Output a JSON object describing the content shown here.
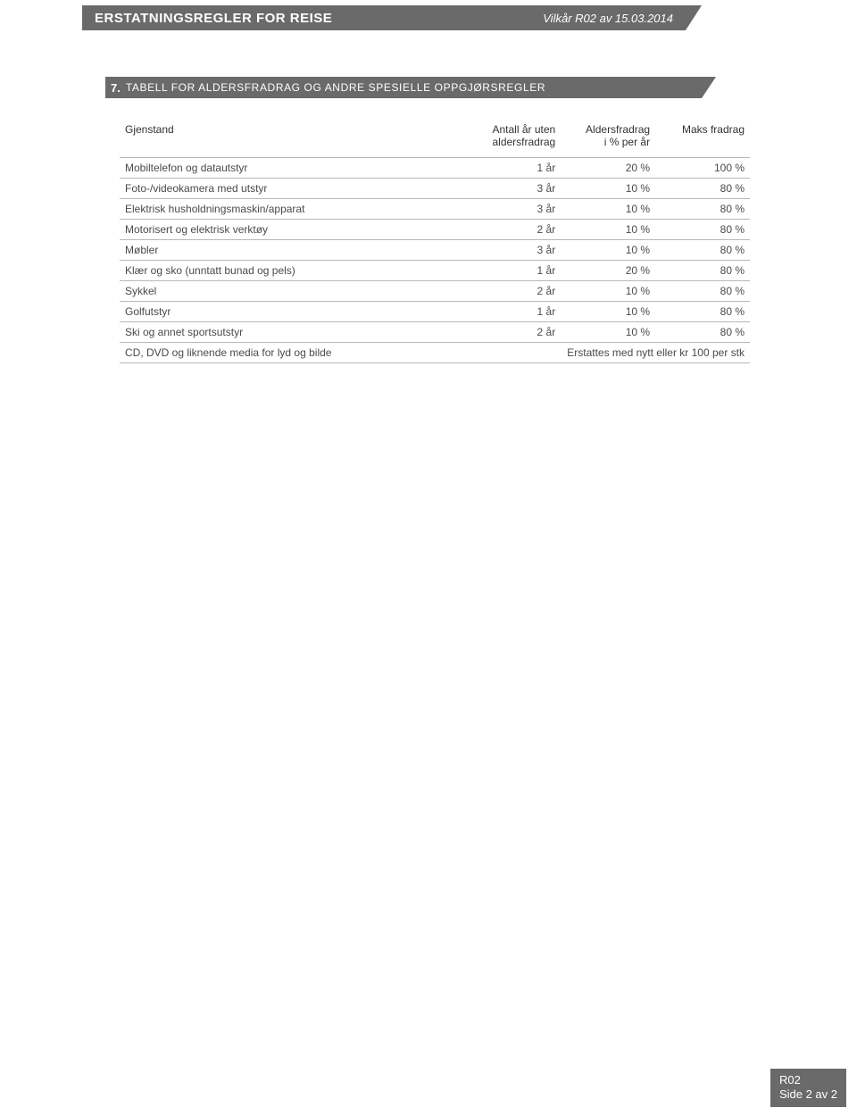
{
  "header": {
    "title": "ERSTATNINGSREGLER FOR REISE",
    "subtitle": "Vilkår R02 av 15.03.2014"
  },
  "section": {
    "number": "7.",
    "title": "TABELL FOR ALDERSFRADRAG OG ANDRE SPESIELLE OPPGJØRSREGLER"
  },
  "table": {
    "columns": {
      "c1": "Gjenstand",
      "c2": "Antall år uten\naldersfradrag",
      "c3": "Aldersfradrag\ni % per år",
      "c4": "Maks fradrag"
    },
    "rows": [
      {
        "c1": "Mobiltelefon og datautstyr",
        "c2": "1 år",
        "c3": "20 %",
        "c4": "100 %"
      },
      {
        "c1": "Foto-/videokamera med utstyr",
        "c2": "3 år",
        "c3": "10 %",
        "c4": "80 %"
      },
      {
        "c1": "Elektrisk husholdningsmaskin/apparat",
        "c2": "3 år",
        "c3": "10 %",
        "c4": "80 %"
      },
      {
        "c1": "Motorisert og elektrisk verktøy",
        "c2": "2 år",
        "c3": "10 %",
        "c4": "80 %"
      },
      {
        "c1": "Møbler",
        "c2": "3 år",
        "c3": "10 %",
        "c4": "80 %"
      },
      {
        "c1": "Klær og sko (unntatt bunad og pels)",
        "c2": "1 år",
        "c3": "20 %",
        "c4": "80 %"
      },
      {
        "c1": "Sykkel",
        "c2": "2 år",
        "c3": "10 %",
        "c4": "80 %"
      },
      {
        "c1": "Golfutstyr",
        "c2": "1 år",
        "c3": "10 %",
        "c4": "80 %"
      },
      {
        "c1": "Ski og annet sportsutstyr",
        "c2": "2 år",
        "c3": "10 %",
        "c4": "80 %"
      }
    ],
    "footer_row": {
      "c1": "CD, DVD og liknende media for lyd og bilde",
      "rest": "Erstattes med nytt eller kr 100 per stk"
    }
  },
  "footer": {
    "line1": "R02",
    "line2": "Side 2 av 2"
  },
  "colors": {
    "bar_bg": "#6a6a6a",
    "bar_text": "#ffffff",
    "text": "#4a4a4a",
    "rule": "#b8b8b8",
    "page_bg": "#ffffff"
  }
}
